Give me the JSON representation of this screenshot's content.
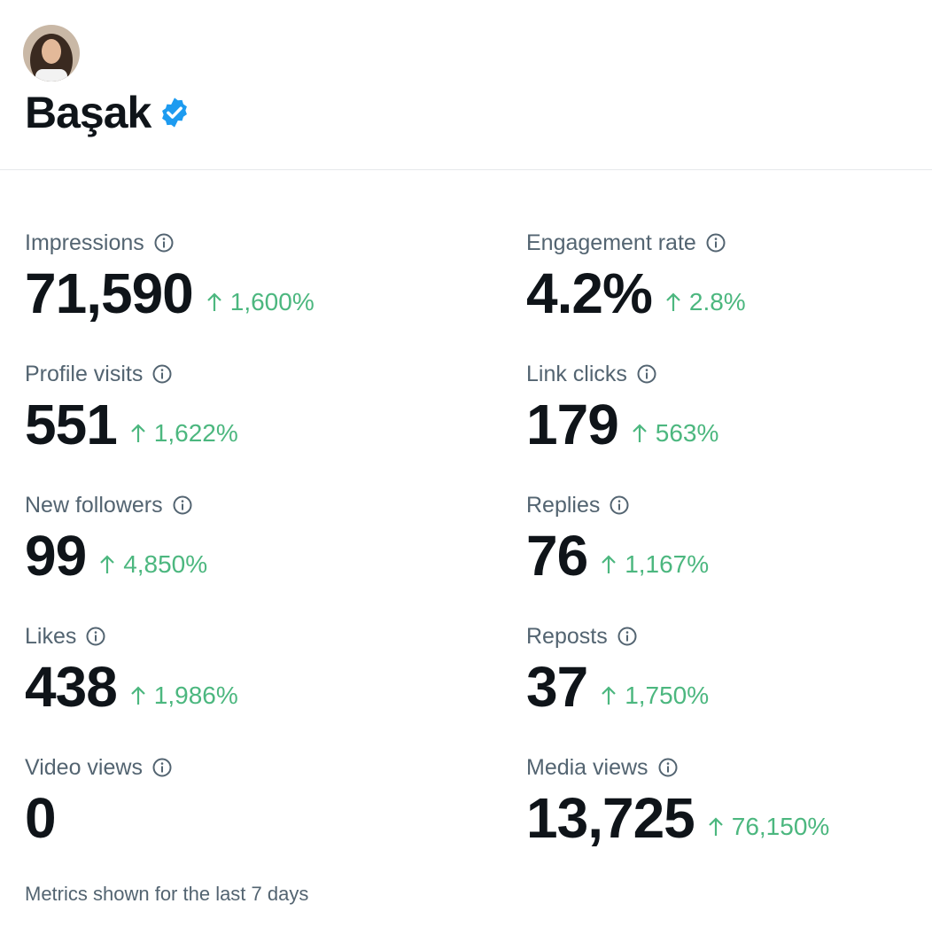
{
  "profile": {
    "name": "Başak"
  },
  "metrics": [
    {
      "label": "Impressions",
      "value": "71,590",
      "change": "1,600%"
    },
    {
      "label": "Engagement rate",
      "value": "4.2%",
      "change": "2.8%"
    },
    {
      "label": "Profile visits",
      "value": "551",
      "change": "1,622%"
    },
    {
      "label": "Link clicks",
      "value": "179",
      "change": "563%"
    },
    {
      "label": "New followers",
      "value": "99",
      "change": "4,850%"
    },
    {
      "label": "Replies",
      "value": "76",
      "change": "1,167%"
    },
    {
      "label": "Likes",
      "value": "438",
      "change": "1,986%"
    },
    {
      "label": "Reposts",
      "value": "37",
      "change": "1,750%"
    },
    {
      "label": "Video views",
      "value": "0"
    },
    {
      "label": "Media views",
      "value": "13,725",
      "change": "76,150%"
    }
  ],
  "footer": "Metrics shown for the last 7 days"
}
